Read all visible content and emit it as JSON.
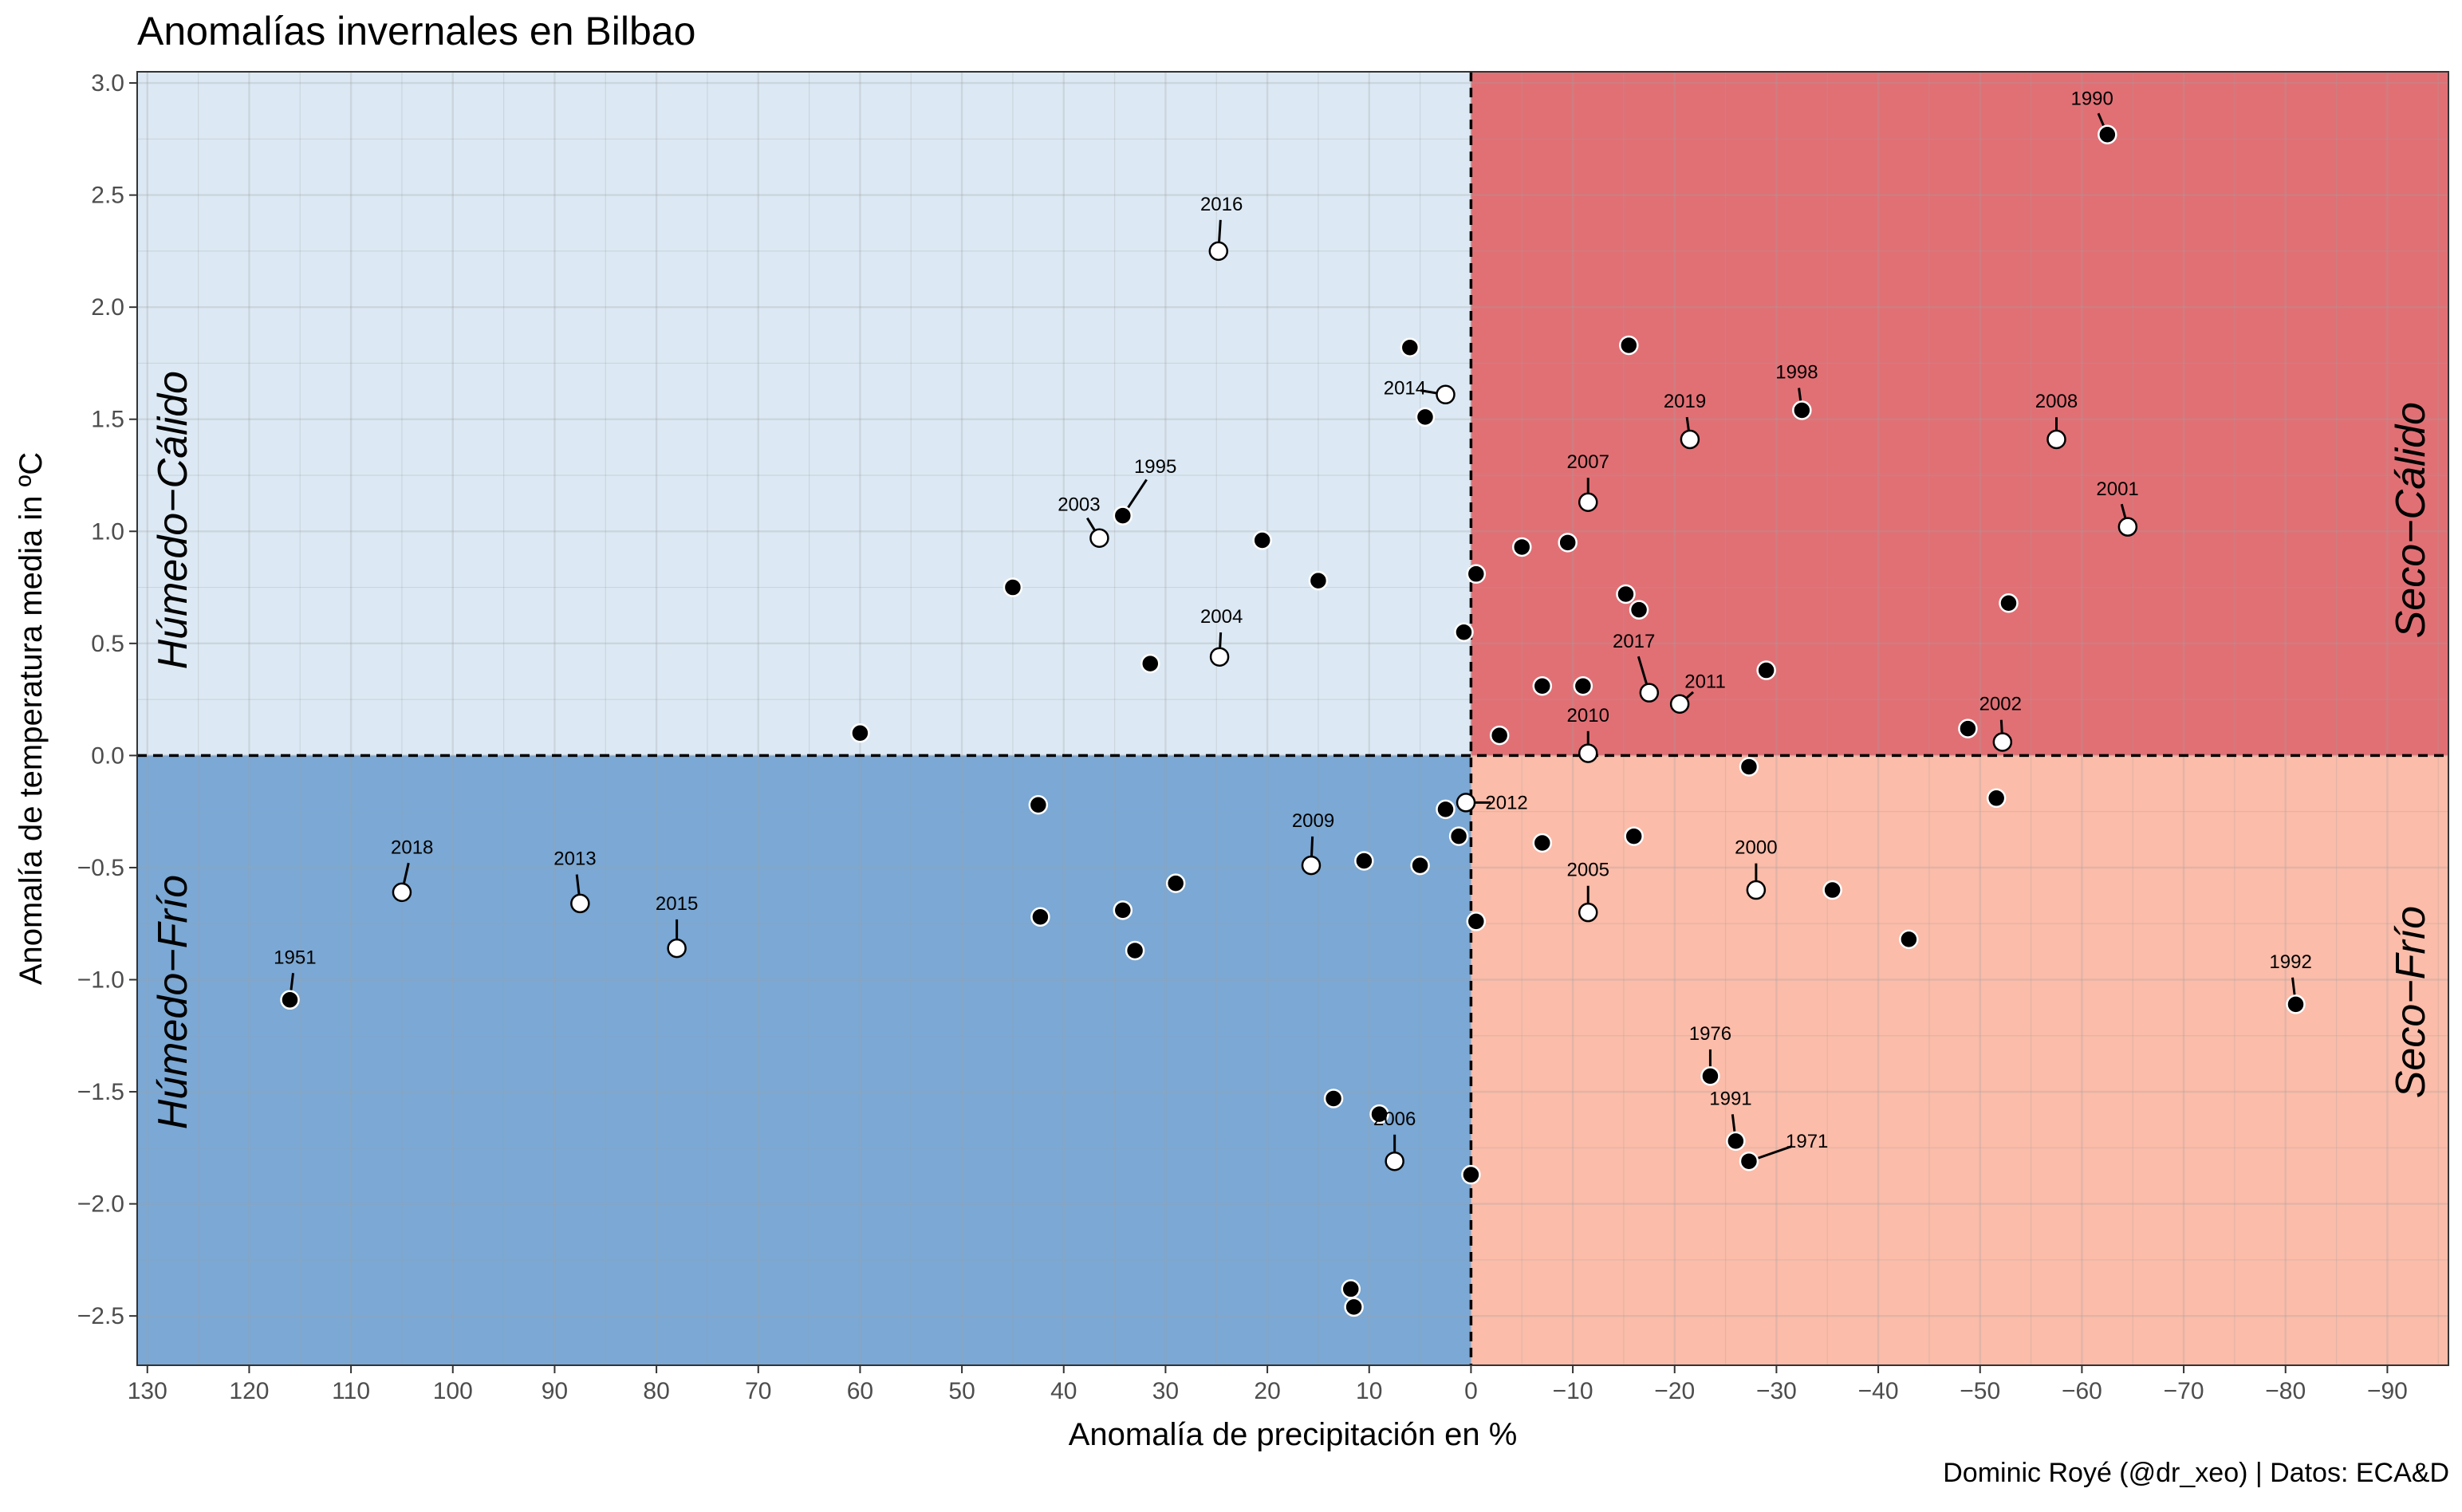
{
  "chart_data": {
    "type": "scatter",
    "title": "Anomalías invernales en Bilbao",
    "caption": "Dominic Royé (@dr_xeo) | Datos: ECA&D",
    "xlabel": "Anomalía de precipitación en %",
    "ylabel": "Anomalía de temperatura media in ºC",
    "x_reversed": true,
    "xlim": [
      131,
      -96
    ],
    "ylim": [
      -2.72,
      3.05
    ],
    "x_ticks": [
      130,
      120,
      110,
      100,
      90,
      80,
      70,
      60,
      50,
      40,
      30,
      20,
      10,
      0,
      -10,
      -20,
      -30,
      -40,
      -50,
      -60,
      -70,
      -80,
      -90
    ],
    "x_tick_labels": [
      "130",
      "120",
      "110",
      "100",
      "90",
      "80",
      "70",
      "60",
      "50",
      "40",
      "30",
      "20",
      "10",
      "0",
      "−10",
      "−20",
      "−30",
      "−40",
      "−50",
      "−60",
      "−70",
      "−80",
      "−90"
    ],
    "y_ticks": [
      3.0,
      2.5,
      2.0,
      1.5,
      1.0,
      0.5,
      0.0,
      -0.5,
      -1.0,
      -1.5,
      -2.0,
      -2.5
    ],
    "y_tick_labels": [
      "3.0",
      "2.5",
      "2.0",
      "1.5",
      "1.0",
      "0.5",
      "0.0",
      "−0.5",
      "−1.0",
      "−1.5",
      "−2.0",
      "−2.5"
    ],
    "grid": true,
    "quadrants": [
      {
        "label": "Húmedo−Cálido",
        "color": "#dce9f4",
        "x": [
          131,
          0
        ],
        "y": [
          0,
          3.05
        ],
        "label_side": "left",
        "label_y": 1.05
      },
      {
        "label": "Seco−Cálido",
        "color": "#e17075",
        "x": [
          0,
          -96
        ],
        "y": [
          0,
          3.05
        ],
        "label_side": "right",
        "label_y": 1.05
      },
      {
        "label": "Húmedo−Frío",
        "color": "#7ba8d4",
        "x": [
          131,
          0
        ],
        "y": [
          -2.72,
          0
        ],
        "label_side": "left",
        "label_y": -1.1
      },
      {
        "label": "Seco−Frío",
        "color": "#fbbca9",
        "x": [
          0,
          -96
        ],
        "y": [
          -2.72,
          0
        ],
        "label_side": "right",
        "label_y": -1.1
      }
    ],
    "labeled_points": [
      {
        "year": "1990",
        "x": -62.5,
        "y": 2.77,
        "hollow": false,
        "lx": -61,
        "ly": 2.93
      },
      {
        "year": "2016",
        "x": 24.8,
        "y": 2.25,
        "hollow": true,
        "lx": 24.5,
        "ly": 2.46
      },
      {
        "year": "2014",
        "x": 2.5,
        "y": 1.61,
        "hollow": true,
        "lx": 6.5,
        "ly": 1.64
      },
      {
        "year": "2019",
        "x": -21.5,
        "y": 1.41,
        "hollow": true,
        "lx": -21,
        "ly": 1.58
      },
      {
        "year": "1998",
        "x": -32.5,
        "y": 1.54,
        "hollow": false,
        "lx": -32,
        "ly": 1.71
      },
      {
        "year": "2008",
        "x": -57.5,
        "y": 1.41,
        "hollow": true,
        "lx": -57.5,
        "ly": 1.58
      },
      {
        "year": "2007",
        "x": -11.5,
        "y": 1.13,
        "hollow": true,
        "lx": -11.5,
        "ly": 1.31
      },
      {
        "year": "2001",
        "x": -64.5,
        "y": 1.02,
        "hollow": true,
        "lx": -63.5,
        "ly": 1.19
      },
      {
        "year": "1995",
        "x": 34.2,
        "y": 1.07,
        "hollow": false,
        "lx": 31,
        "ly": 1.29
      },
      {
        "year": "2003",
        "x": 36.5,
        "y": 0.97,
        "hollow": true,
        "lx": 38.5,
        "ly": 1.12
      },
      {
        "year": "2004",
        "x": 24.7,
        "y": 0.44,
        "hollow": true,
        "lx": 24.5,
        "ly": 0.62
      },
      {
        "year": "2017",
        "x": -17.5,
        "y": 0.28,
        "hollow": true,
        "lx": -16,
        "ly": 0.51
      },
      {
        "year": "2011",
        "x": -20.5,
        "y": 0.23,
        "hollow": true,
        "lx": -23,
        "ly": 0.33
      },
      {
        "year": "2010",
        "x": -11.5,
        "y": 0.01,
        "hollow": true,
        "lx": -11.5,
        "ly": 0.18
      },
      {
        "year": "2002",
        "x": -52.2,
        "y": 0.06,
        "hollow": true,
        "lx": -52,
        "ly": 0.23
      },
      {
        "year": "2012",
        "x": 0.5,
        "y": -0.21,
        "hollow": true,
        "lx": -3.5,
        "ly": -0.21
      },
      {
        "year": "2009",
        "x": 15.7,
        "y": -0.49,
        "hollow": true,
        "lx": 15.5,
        "ly": -0.29
      },
      {
        "year": "2018",
        "x": 105.0,
        "y": -0.61,
        "hollow": true,
        "lx": 104,
        "ly": -0.41
      },
      {
        "year": "2013",
        "x": 87.5,
        "y": -0.66,
        "hollow": true,
        "lx": 88,
        "ly": -0.46
      },
      {
        "year": "2015",
        "x": 78.0,
        "y": -0.86,
        "hollow": true,
        "lx": 78,
        "ly": -0.66
      },
      {
        "year": "2000",
        "x": -28.0,
        "y": -0.6,
        "hollow": true,
        "lx": -28,
        "ly": -0.41
      },
      {
        "year": "2005",
        "x": -11.5,
        "y": -0.7,
        "hollow": true,
        "lx": -11.5,
        "ly": -0.51
      },
      {
        "year": "1951",
        "x": 116.0,
        "y": -1.09,
        "hollow": false,
        "lx": 115.5,
        "ly": -0.9
      },
      {
        "year": "1992",
        "x": -81.0,
        "y": -1.11,
        "hollow": false,
        "lx": -80.5,
        "ly": -0.92
      },
      {
        "year": "1976",
        "x": -23.5,
        "y": -1.43,
        "hollow": false,
        "lx": -23.5,
        "ly": -1.24
      },
      {
        "year": "1991",
        "x": -26.0,
        "y": -1.72,
        "hollow": false,
        "lx": -25.5,
        "ly": -1.53
      },
      {
        "year": "1971",
        "x": -27.3,
        "y": -1.81,
        "hollow": false,
        "lx": -33,
        "ly": -1.72
      },
      {
        "year": "2006",
        "x": 7.5,
        "y": -1.81,
        "hollow": true,
        "lx": 7.5,
        "ly": -1.62
      }
    ],
    "points": [
      {
        "x": 60.0,
        "y": 0.1
      },
      {
        "x": 45.0,
        "y": 0.75
      },
      {
        "x": 31.5,
        "y": 0.41
      },
      {
        "x": 20.5,
        "y": 0.96
      },
      {
        "x": 15.0,
        "y": 0.78
      },
      {
        "x": 6.0,
        "y": 1.82
      },
      {
        "x": 4.5,
        "y": 1.51
      },
      {
        "x": 0.7,
        "y": 0.55
      },
      {
        "x": -0.5,
        "y": 0.81
      },
      {
        "x": -5.0,
        "y": 0.93
      },
      {
        "x": -9.5,
        "y": 0.95
      },
      {
        "x": -15.5,
        "y": 1.83
      },
      {
        "x": -15.2,
        "y": 0.72
      },
      {
        "x": -16.5,
        "y": 0.65
      },
      {
        "x": -7.0,
        "y": 0.31
      },
      {
        "x": -11.0,
        "y": 0.31
      },
      {
        "x": -2.8,
        "y": 0.09
      },
      {
        "x": -29.0,
        "y": 0.38
      },
      {
        "x": -52.8,
        "y": 0.68
      },
      {
        "x": -48.8,
        "y": 0.12
      },
      {
        "x": -27.3,
        "y": -0.05
      },
      {
        "x": -51.6,
        "y": -0.19
      },
      {
        "x": 42.5,
        "y": -0.22
      },
      {
        "x": 42.3,
        "y": -0.72
      },
      {
        "x": 34.2,
        "y": -0.69
      },
      {
        "x": 33.0,
        "y": -0.87
      },
      {
        "x": 29.0,
        "y": -0.57
      },
      {
        "x": 10.5,
        "y": -0.47
      },
      {
        "x": 5.0,
        "y": -0.49
      },
      {
        "x": 2.5,
        "y": -0.24
      },
      {
        "x": 1.2,
        "y": -0.36
      },
      {
        "x": -0.5,
        "y": -0.74
      },
      {
        "x": -7.0,
        "y": -0.39
      },
      {
        "x": -16.0,
        "y": -0.36
      },
      {
        "x": -35.5,
        "y": -0.6
      },
      {
        "x": -43.0,
        "y": -0.82
      },
      {
        "x": 13.5,
        "y": -1.53
      },
      {
        "x": 9.0,
        "y": -1.6
      },
      {
        "x": 0.0,
        "y": -1.87
      },
      {
        "x": 11.8,
        "y": -2.38
      },
      {
        "x": 11.5,
        "y": -2.46
      }
    ]
  }
}
